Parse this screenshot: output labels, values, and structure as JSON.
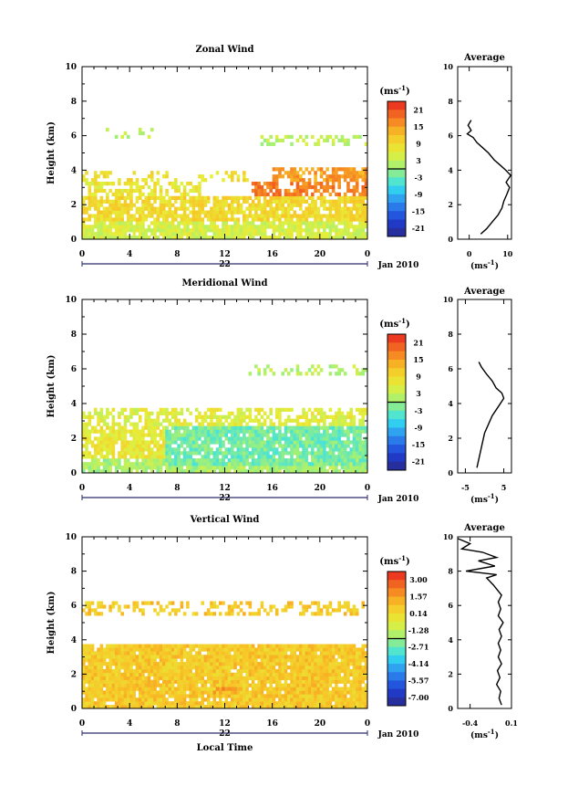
{
  "panels": [
    {
      "id": "zonal",
      "title": "Zonal Wind",
      "ylabel": "Height (km)",
      "ylim": [
        0,
        10
      ],
      "yticks": [
        "0",
        "2",
        "4",
        "6",
        "8",
        "10"
      ],
      "xlim": [
        0,
        24
      ],
      "xticks": [
        "0",
        "4",
        "8",
        "12",
        "16",
        "20",
        "0"
      ],
      "date_day": "22",
      "date_tail": "Jan 2010",
      "colorbar": {
        "unit": "(ms",
        "unit_exp": "-1",
        "unit_close": ")",
        "ticks": [
          "21",
          "15",
          "9",
          "3",
          "-3",
          "-9",
          "-15",
          "-21"
        ]
      },
      "avg": {
        "title": "Average",
        "xlim": [
          -3,
          11
        ],
        "xticks": [
          "0",
          "10"
        ],
        "xtick_values": [
          0,
          10
        ],
        "yticks": [
          "0",
          "2",
          "4",
          "6",
          "8",
          "10"
        ],
        "xlabel": "(ms",
        "xlabel_exp": "-1",
        "xlabel_close": ")",
        "profile": [
          [
            3.0,
            0.3
          ],
          [
            4.5,
            0.6
          ],
          [
            6.0,
            1.0
          ],
          [
            7.5,
            1.4
          ],
          [
            8.5,
            1.8
          ],
          [
            9.0,
            2.2
          ],
          [
            9.8,
            2.6
          ],
          [
            10.5,
            3.0
          ],
          [
            9.6,
            3.3
          ],
          [
            10.8,
            3.7
          ],
          [
            9.5,
            4.0
          ],
          [
            8.0,
            4.3
          ],
          [
            6.5,
            4.6
          ],
          [
            5.0,
            5.0
          ],
          [
            3.5,
            5.3
          ],
          [
            2.0,
            5.6
          ],
          [
            1.0,
            5.9
          ],
          [
            -0.5,
            6.1
          ],
          [
            0.5,
            6.3
          ],
          [
            -0.3,
            6.6
          ],
          [
            0.5,
            6.9
          ]
        ]
      },
      "field": {
        "style": "zonal",
        "blocks": [
          {
            "x": [
              0,
              24
            ],
            "y": [
              0.2,
              1.2
            ],
            "v": 4,
            "density": 0.85
          },
          {
            "x": [
              0,
              24
            ],
            "y": [
              1.2,
              2.6
            ],
            "v": 8,
            "density": 0.8
          },
          {
            "x": [
              0,
              10
            ],
            "y": [
              2.6,
              3.4
            ],
            "v": 6,
            "density": 0.6
          },
          {
            "x": [
              14,
              24
            ],
            "y": [
              2.6,
              3.4
            ],
            "v": 15,
            "density": 0.65
          },
          {
            "x": [
              16,
              24
            ],
            "y": [
              3.4,
              4.2
            ],
            "v": 13,
            "density": 0.7
          },
          {
            "x": [
              0,
              14
            ],
            "y": [
              3.4,
              4.0
            ],
            "v": 7,
            "density": 0.3
          },
          {
            "x": [
              15,
              24
            ],
            "y": [
              5.6,
              6.1
            ],
            "v": 2,
            "density": 0.3
          },
          {
            "x": [
              1,
              6
            ],
            "y": [
              6.0,
              6.6
            ],
            "v": 2,
            "density": 0.2
          }
        ]
      }
    },
    {
      "id": "meridional",
      "title": "Meridional Wind",
      "ylabel": "Height (km)",
      "ylim": [
        0,
        10
      ],
      "yticks": [
        "0",
        "2",
        "4",
        "6",
        "8",
        "10"
      ],
      "xlim": [
        0,
        24
      ],
      "xticks": [
        "0",
        "4",
        "8",
        "12",
        "16",
        "20",
        "0"
      ],
      "date_day": "22",
      "date_tail": "Jan 2010",
      "colorbar": {
        "unit": "(ms",
        "unit_exp": "-1",
        "unit_close": ")",
        "ticks": [
          "21",
          "15",
          "9",
          "3",
          "-3",
          "-9",
          "-15",
          "-21"
        ]
      },
      "avg": {
        "title": "Average",
        "xlim": [
          -7,
          7
        ],
        "xticks": [
          "-5",
          "5"
        ],
        "xtick_values": [
          -5,
          5
        ],
        "yticks": [
          "0",
          "2",
          "4",
          "6",
          "8",
          "10"
        ],
        "xlabel": "(ms",
        "xlabel_exp": "-1",
        "xlabel_close": ")",
        "profile": [
          [
            -2.0,
            0.3
          ],
          [
            -1.5,
            0.8
          ],
          [
            -1.0,
            1.3
          ],
          [
            -0.5,
            1.8
          ],
          [
            0.0,
            2.3
          ],
          [
            1.0,
            2.8
          ],
          [
            2.0,
            3.3
          ],
          [
            3.5,
            3.8
          ],
          [
            5.0,
            4.3
          ],
          [
            4.5,
            4.6
          ],
          [
            3.0,
            4.9
          ],
          [
            2.0,
            5.3
          ],
          [
            0.5,
            5.7
          ],
          [
            -0.8,
            6.1
          ],
          [
            -1.5,
            6.4
          ]
        ]
      },
      "field": {
        "style": "meridional",
        "blocks": [
          {
            "x": [
              0,
              24
            ],
            "y": [
              0.2,
              1.0
            ],
            "v": 1,
            "density": 0.85
          },
          {
            "x": [
              0,
              7
            ],
            "y": [
              1.0,
              2.8
            ],
            "v": 6,
            "density": 0.8
          },
          {
            "x": [
              7,
              24
            ],
            "y": [
              0.6,
              2.9
            ],
            "v": -2,
            "density": 0.9
          },
          {
            "x": [
              0,
              24
            ],
            "y": [
              2.9,
              3.8
            ],
            "v": 5,
            "density": 0.6
          },
          {
            "x": [
              14,
              24
            ],
            "y": [
              5.7,
              6.3
            ],
            "v": 2,
            "density": 0.35
          }
        ]
      }
    },
    {
      "id": "vertical",
      "title": "Vertical Wind",
      "ylabel": "Height (km)",
      "ylim": [
        0,
        10
      ],
      "yticks": [
        "0",
        "2",
        "4",
        "6",
        "8",
        "10"
      ],
      "xlim": [
        0,
        24
      ],
      "xticks": [
        "0",
        "4",
        "8",
        "12",
        "16",
        "20",
        "0"
      ],
      "xlabel": "Local Time",
      "date_day": "22",
      "date_tail": "Jan 2010",
      "colorbar": {
        "unit": "(ms",
        "unit_exp": "-1",
        "unit_close": ")",
        "ticks": [
          "3.00",
          "1.57",
          "0.14",
          "-1.28",
          "-2.71",
          "-4.14",
          "-5.57",
          "-7.00"
        ]
      },
      "avg": {
        "title": "Average",
        "xlim": [
          -0.55,
          0.1
        ],
        "xticks": [
          "-0.4",
          "0.1"
        ],
        "xtick_values": [
          -0.4,
          0.1
        ],
        "yticks": [
          "0",
          "2",
          "4",
          "6",
          "8",
          "10"
        ],
        "xlabel": "(ms",
        "xlabel_exp": "-1",
        "xlabel_close": ")",
        "profile": [
          [
            -0.02,
            0.2
          ],
          [
            -0.05,
            0.6
          ],
          [
            -0.03,
            1.0
          ],
          [
            -0.08,
            1.4
          ],
          [
            -0.04,
            1.8
          ],
          [
            -0.07,
            2.2
          ],
          [
            -0.02,
            2.6
          ],
          [
            -0.06,
            3.0
          ],
          [
            -0.03,
            3.4
          ],
          [
            -0.06,
            3.8
          ],
          [
            -0.02,
            4.2
          ],
          [
            -0.05,
            4.6
          ],
          [
            0.0,
            5.0
          ],
          [
            -0.06,
            5.4
          ],
          [
            -0.03,
            5.8
          ],
          [
            -0.06,
            6.2
          ],
          [
            -0.02,
            6.6
          ],
          [
            -0.12,
            7.2
          ],
          [
            -0.2,
            7.6
          ],
          [
            -0.08,
            7.8
          ],
          [
            -0.45,
            8.0
          ],
          [
            -0.1,
            8.3
          ],
          [
            -0.3,
            8.6
          ],
          [
            -0.08,
            8.8
          ],
          [
            -0.25,
            9.1
          ],
          [
            -0.5,
            9.3
          ],
          [
            -0.4,
            9.6
          ],
          [
            -0.55,
            9.9
          ]
        ]
      },
      "field": {
        "style": "vertical",
        "blocks": [
          {
            "x": [
              0,
              24
            ],
            "y": [
              0.2,
              3.9
            ],
            "v": 0.3,
            "density": 0.95
          },
          {
            "x": [
              0,
              24
            ],
            "y": [
              5.6,
              6.4
            ],
            "v": 0.3,
            "density": 0.4
          },
          {
            "x": [
              11,
              13
            ],
            "y": [
              1.0,
              1.4
            ],
            "v": 1.2,
            "density": 0.6
          }
        ]
      }
    }
  ]
}
